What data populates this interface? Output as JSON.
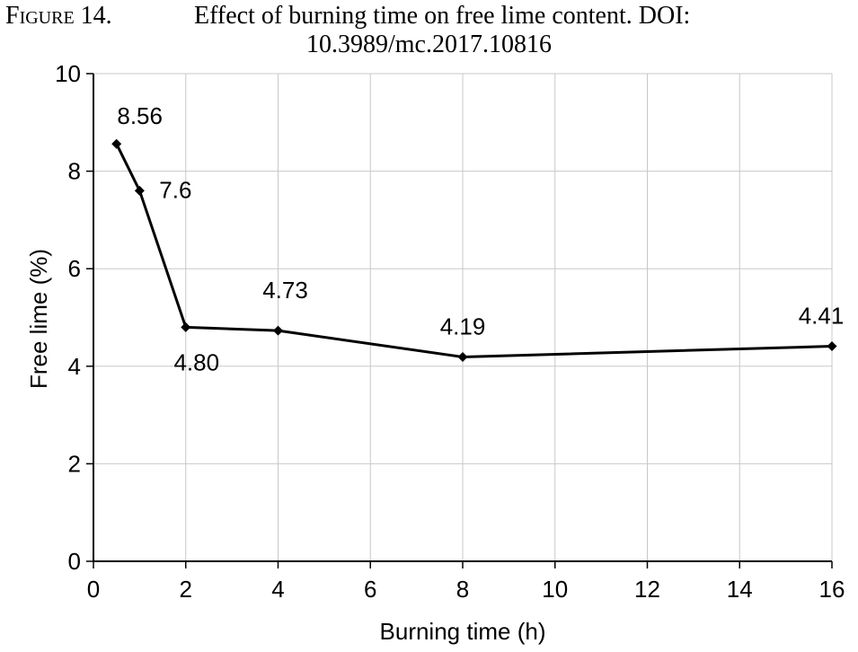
{
  "caption": {
    "label": "Figure 14.",
    "text_line1": "Effect of burning time on free lime content. DOI:",
    "text_line2": "10.3989/mc.2017.10816"
  },
  "chart_data": {
    "type": "line",
    "xlabel": "Burning time (h)",
    "ylabel": "Free lime (%)",
    "xlim": [
      0,
      16
    ],
    "ylim": [
      0,
      10
    ],
    "xticks": [
      0,
      2,
      4,
      6,
      8,
      10,
      12,
      14,
      16
    ],
    "yticks": [
      0,
      2,
      4,
      6,
      8,
      10
    ],
    "grid": true,
    "series": [
      {
        "x": [
          0.5,
          1,
          2,
          4,
          8,
          16
        ],
        "y": [
          8.56,
          7.6,
          4.8,
          4.73,
          4.19,
          4.41
        ],
        "labels": [
          "8.56",
          "7.6",
          "4.80",
          "4.73",
          "4.19",
          "4.41"
        ],
        "color": "#000000"
      }
    ]
  }
}
